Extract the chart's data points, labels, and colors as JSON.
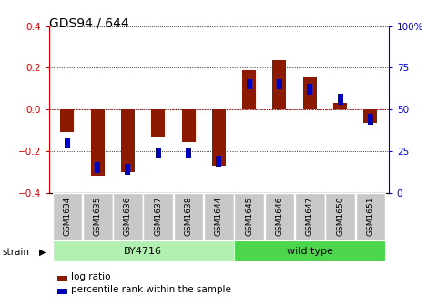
{
  "title": "GDS94 / 644",
  "samples": [
    "GSM1634",
    "GSM1635",
    "GSM1636",
    "GSM1637",
    "GSM1638",
    "GSM1644",
    "GSM1645",
    "GSM1646",
    "GSM1647",
    "GSM1650",
    "GSM1651"
  ],
  "log_ratios": [
    -0.11,
    -0.32,
    -0.3,
    -0.13,
    -0.155,
    -0.27,
    0.19,
    0.235,
    0.155,
    0.03,
    -0.065
  ],
  "percentile_ranks": [
    30,
    15,
    14,
    24,
    24,
    19,
    65,
    65,
    62,
    56,
    44
  ],
  "strain_groups": [
    {
      "label": "BY4716",
      "start": 0,
      "end": 5,
      "color": "#b2f0b2"
    },
    {
      "label": "wild type",
      "start": 6,
      "end": 10,
      "color": "#4cd64c"
    }
  ],
  "ylim": [
    -0.4,
    0.4
  ],
  "y2lim": [
    0,
    100
  ],
  "yticks": [
    -0.4,
    -0.2,
    0.0,
    0.2,
    0.4
  ],
  "y2ticks": [
    0,
    25,
    50,
    75,
    100
  ],
  "red_color": "#8b1a00",
  "blue_color": "#0000bb",
  "bar_width": 0.45,
  "blue_square_size": 0.025,
  "blue_bar_width": 0.18,
  "grid_color": "#000000",
  "zero_line_color": "#cc0000",
  "bg_color": "#ffffff",
  "plot_bg": "#ffffff",
  "tick_label_color_left": "#cc0000",
  "tick_label_color_right": "#0000cc",
  "xtick_bg": "#c8c8c8"
}
